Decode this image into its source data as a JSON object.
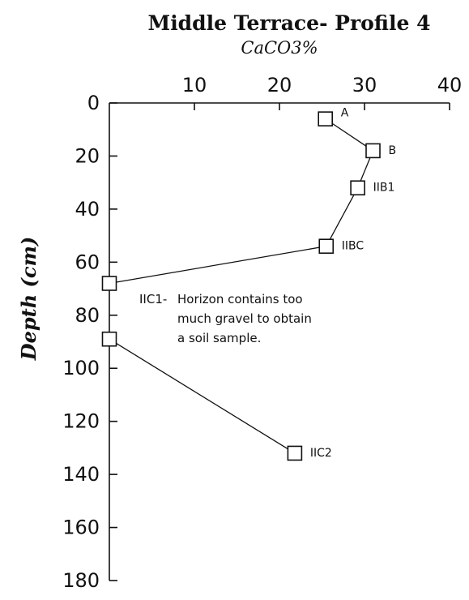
{
  "chart_data": {
    "type": "scatter",
    "title": "Middle Terrace- Profile 4",
    "subtitle": "CaCO3%",
    "xlabel": "CaCO3%",
    "ylabel": "Depth (cm)",
    "xlim": [
      0,
      40
    ],
    "ylim": [
      0,
      180
    ],
    "x_axis_position": "top",
    "y_axis_inverted": true,
    "grid": false,
    "x_ticks": [
      "10",
      "20",
      "30",
      "40"
    ],
    "y_ticks": [
      "0",
      "20",
      "40",
      "60",
      "80",
      "100",
      "120",
      "140",
      "160",
      "180"
    ],
    "points": [
      {
        "label": "A",
        "x": 25.4,
        "y": 6
      },
      {
        "label": "B",
        "x": 31.0,
        "y": 18
      },
      {
        "label": "IIB1",
        "x": 29.2,
        "y": 32
      },
      {
        "label": "IIBC",
        "x": 25.5,
        "y": 54
      },
      {
        "label": "",
        "x": 0,
        "y": 68
      },
      {
        "label": "",
        "x": 0,
        "y": 89
      },
      {
        "label": "IIC2",
        "x": 21.8,
        "y": 132
      }
    ],
    "segments": [
      [
        0,
        1,
        2,
        3,
        4
      ],
      [
        5,
        6
      ]
    ],
    "annotation": {
      "label": "IIC1-",
      "lines": [
        "Horizon contains too",
        "much gravel to obtain",
        "a soil sample."
      ]
    }
  }
}
